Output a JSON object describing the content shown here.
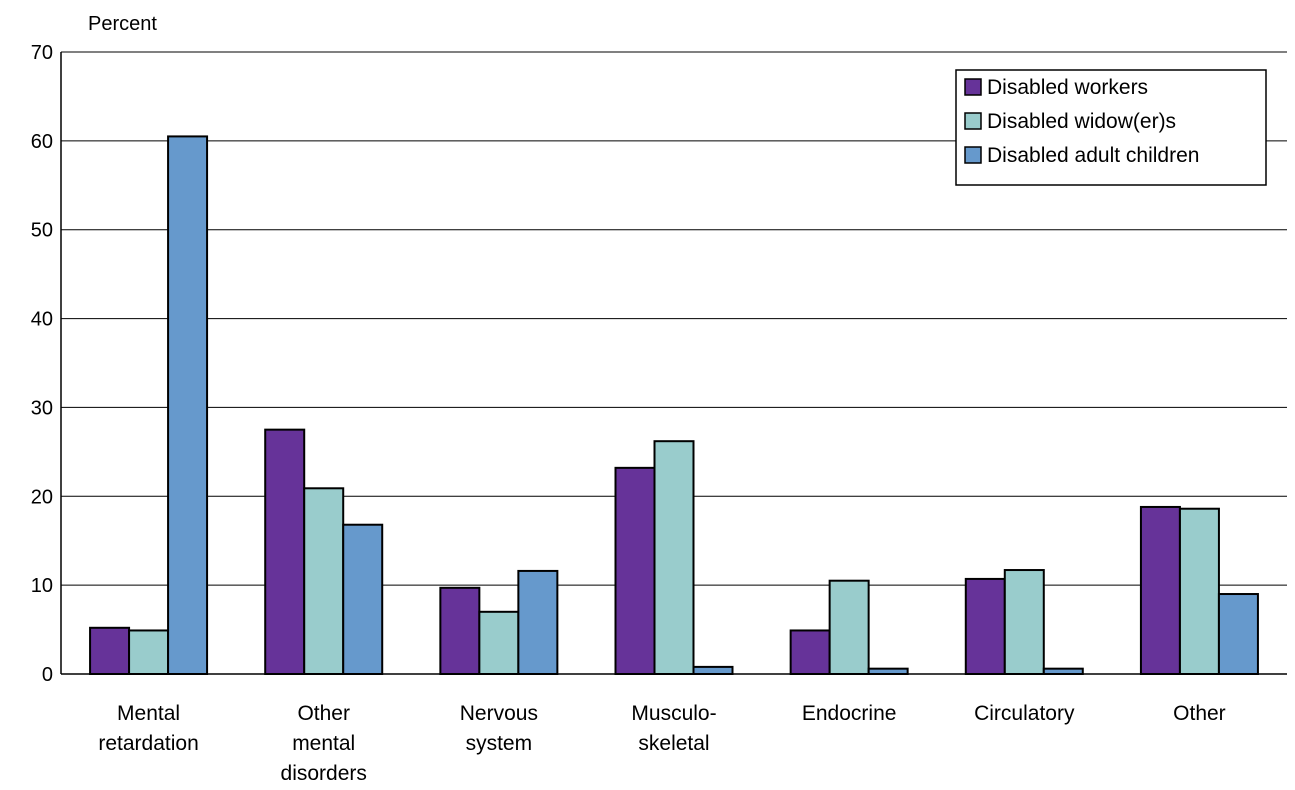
{
  "chart_data": {
    "type": "bar",
    "ylabel": "Percent",
    "ylim": [
      0,
      70
    ],
    "yticks": [
      0,
      10,
      20,
      30,
      40,
      50,
      60,
      70
    ],
    "grid": true,
    "legend_position": "top-right",
    "categories": [
      [
        "Mental",
        "retardation"
      ],
      [
        "Other",
        "mental",
        "disorders"
      ],
      [
        "Nervous",
        "system"
      ],
      [
        "Musculo-",
        "skeletal"
      ],
      [
        "Endocrine"
      ],
      [
        "Circulatory"
      ],
      [
        "Other"
      ]
    ],
    "series": [
      {
        "name": "Disabled workers",
        "color": "#663399",
        "values": [
          5.2,
          27.5,
          9.7,
          23.2,
          4.9,
          10.7,
          18.8
        ]
      },
      {
        "name": "Disabled widow(er)s",
        "color": "#99CCCC",
        "values": [
          4.9,
          20.9,
          7.0,
          26.2,
          10.5,
          11.7,
          18.6
        ]
      },
      {
        "name": "Disabled adult children",
        "color": "#6699CC",
        "values": [
          60.5,
          16.8,
          11.6,
          0.8,
          0.6,
          0.6,
          9.0
        ]
      }
    ]
  }
}
